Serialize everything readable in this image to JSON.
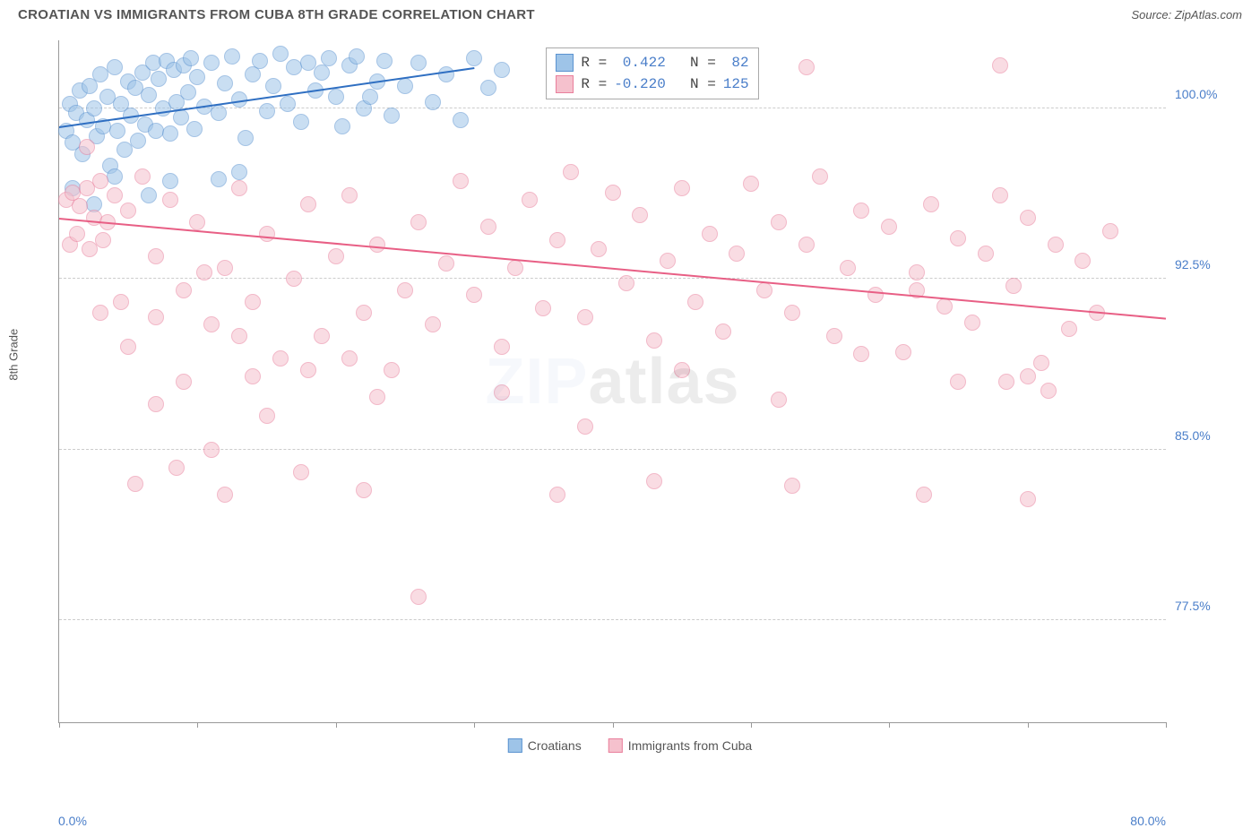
{
  "title": "CROATIAN VS IMMIGRANTS FROM CUBA 8TH GRADE CORRELATION CHART",
  "source": "Source: ZipAtlas.com",
  "yaxis_label": "8th Grade",
  "watermark_a": "ZIP",
  "watermark_b": "atlas",
  "chart": {
    "type": "scatter",
    "xlim": [
      0,
      80
    ],
    "ylim": [
      73,
      103
    ],
    "yticks": [
      77.5,
      85.0,
      92.5,
      100.0
    ],
    "ytick_labels": [
      "77.5%",
      "85.0%",
      "92.5%",
      "100.0%"
    ],
    "xticks": [
      0,
      10,
      20,
      30,
      40,
      50,
      60,
      70,
      80
    ],
    "xaxis_min_label": "0.0%",
    "xaxis_max_label": "80.0%",
    "background_color": "#ffffff",
    "grid_color": "#cccccc",
    "series": [
      {
        "name": "Croatians",
        "color_fill": "#9ec4e8",
        "color_stroke": "#5b93d0",
        "line_color": "#2f6fc2",
        "R": "0.422",
        "N": "82",
        "trend": {
          "x1": 0,
          "y1": 99.2,
          "x2": 30,
          "y2": 101.8
        },
        "points": [
          [
            0.5,
            99.0
          ],
          [
            0.8,
            100.2
          ],
          [
            1.0,
            98.5
          ],
          [
            1.2,
            99.8
          ],
          [
            1.5,
            100.8
          ],
          [
            1.7,
            98.0
          ],
          [
            2.0,
            99.5
          ],
          [
            2.2,
            101.0
          ],
          [
            2.5,
            100.0
          ],
          [
            2.7,
            98.8
          ],
          [
            3.0,
            101.5
          ],
          [
            3.2,
            99.2
          ],
          [
            3.5,
            100.5
          ],
          [
            3.7,
            97.5
          ],
          [
            4.0,
            101.8
          ],
          [
            4.2,
            99.0
          ],
          [
            4.5,
            100.2
          ],
          [
            4.7,
            98.2
          ],
          [
            5.0,
            101.2
          ],
          [
            5.2,
            99.7
          ],
          [
            5.5,
            100.9
          ],
          [
            5.7,
            98.6
          ],
          [
            6.0,
            101.6
          ],
          [
            6.2,
            99.3
          ],
          [
            6.5,
            100.6
          ],
          [
            6.8,
            102.0
          ],
          [
            7.0,
            99.0
          ],
          [
            7.2,
            101.3
          ],
          [
            7.5,
            100.0
          ],
          [
            7.8,
            102.1
          ],
          [
            8.0,
            98.9
          ],
          [
            8.3,
            101.7
          ],
          [
            8.5,
            100.3
          ],
          [
            8.8,
            99.6
          ],
          [
            9.0,
            101.9
          ],
          [
            9.3,
            100.7
          ],
          [
            9.5,
            102.2
          ],
          [
            9.8,
            99.1
          ],
          [
            10.0,
            101.4
          ],
          [
            10.5,
            100.1
          ],
          [
            11.0,
            102.0
          ],
          [
            11.5,
            99.8
          ],
          [
            12.0,
            101.1
          ],
          [
            12.5,
            102.3
          ],
          [
            13.0,
            100.4
          ],
          [
            13.5,
            98.7
          ],
          [
            14.0,
            101.5
          ],
          [
            14.5,
            102.1
          ],
          [
            15.0,
            99.9
          ],
          [
            15.5,
            101.0
          ],
          [
            16.0,
            102.4
          ],
          [
            16.5,
            100.2
          ],
          [
            17.0,
            101.8
          ],
          [
            17.5,
            99.4
          ],
          [
            18.0,
            102.0
          ],
          [
            18.5,
            100.8
          ],
          [
            19.0,
            101.6
          ],
          [
            19.5,
            102.2
          ],
          [
            20.0,
            100.5
          ],
          [
            20.5,
            99.2
          ],
          [
            21.0,
            101.9
          ],
          [
            21.5,
            102.3
          ],
          [
            22.0,
            100.0
          ],
          [
            22.5,
            100.5
          ],
          [
            23.0,
            101.2
          ],
          [
            23.5,
            102.1
          ],
          [
            24.0,
            99.7
          ],
          [
            25.0,
            101.0
          ],
          [
            26.0,
            102.0
          ],
          [
            27.0,
            100.3
          ],
          [
            28.0,
            101.5
          ],
          [
            29.0,
            99.5
          ],
          [
            30.0,
            102.2
          ],
          [
            31.0,
            100.9
          ],
          [
            32.0,
            101.7
          ],
          [
            11.5,
            96.9
          ],
          [
            13.0,
            97.2
          ],
          [
            1.0,
            96.5
          ],
          [
            2.5,
            95.8
          ],
          [
            4.0,
            97.0
          ],
          [
            6.5,
            96.2
          ],
          [
            8.0,
            96.8
          ]
        ]
      },
      {
        "name": "Immigrants from Cuba",
        "color_fill": "#f5c1cd",
        "color_stroke": "#e97f9c",
        "line_color": "#e85f85",
        "R": "-0.220",
        "N": "125",
        "trend": {
          "x1": 0,
          "y1": 95.2,
          "x2": 80,
          "y2": 90.8
        },
        "points": [
          [
            0.5,
            96.0
          ],
          [
            1.0,
            96.3
          ],
          [
            1.5,
            95.7
          ],
          [
            2.0,
            96.5
          ],
          [
            2.5,
            95.2
          ],
          [
            3.0,
            96.8
          ],
          [
            3.5,
            95.0
          ],
          [
            0.8,
            94.0
          ],
          [
            1.3,
            94.5
          ],
          [
            2.2,
            93.8
          ],
          [
            3.2,
            94.2
          ],
          [
            4.0,
            96.2
          ],
          [
            5.0,
            95.5
          ],
          [
            6.0,
            97.0
          ],
          [
            7.0,
            93.5
          ],
          [
            8.0,
            96.0
          ],
          [
            9.0,
            92.0
          ],
          [
            10.0,
            95.0
          ],
          [
            11.0,
            90.5
          ],
          [
            12.0,
            93.0
          ],
          [
            13.0,
            96.5
          ],
          [
            14.0,
            91.5
          ],
          [
            15.0,
            94.5
          ],
          [
            16.0,
            89.0
          ],
          [
            17.0,
            92.5
          ],
          [
            18.0,
            95.8
          ],
          [
            19.0,
            90.0
          ],
          [
            20.0,
            93.5
          ],
          [
            21.0,
            96.2
          ],
          [
            22.0,
            91.0
          ],
          [
            23.0,
            94.0
          ],
          [
            24.0,
            88.5
          ],
          [
            25.0,
            92.0
          ],
          [
            26.0,
            95.0
          ],
          [
            27.0,
            90.5
          ],
          [
            28.0,
            93.2
          ],
          [
            29.0,
            96.8
          ],
          [
            30.0,
            91.8
          ],
          [
            31.0,
            94.8
          ],
          [
            32.0,
            89.5
          ],
          [
            33.0,
            93.0
          ],
          [
            34.0,
            96.0
          ],
          [
            35.0,
            91.2
          ],
          [
            36.0,
            94.2
          ],
          [
            37.0,
            97.2
          ],
          [
            38.0,
            90.8
          ],
          [
            39.0,
            93.8
          ],
          [
            40.0,
            96.3
          ],
          [
            41.0,
            92.3
          ],
          [
            42.0,
            95.3
          ],
          [
            43.0,
            89.8
          ],
          [
            44.0,
            93.3
          ],
          [
            45.0,
            96.5
          ],
          [
            46.0,
            91.5
          ],
          [
            47.0,
            94.5
          ],
          [
            48.0,
            90.2
          ],
          [
            49.0,
            93.6
          ],
          [
            50.0,
            96.7
          ],
          [
            51.0,
            92.0
          ],
          [
            52.0,
            95.0
          ],
          [
            53.0,
            91.0
          ],
          [
            54.0,
            94.0
          ],
          [
            55.0,
            97.0
          ],
          [
            56.0,
            90.0
          ],
          [
            57.0,
            93.0
          ],
          [
            58.0,
            95.5
          ],
          [
            59.0,
            91.8
          ],
          [
            60.0,
            94.8
          ],
          [
            61.0,
            89.3
          ],
          [
            62.0,
            92.8
          ],
          [
            63.0,
            95.8
          ],
          [
            64.0,
            91.3
          ],
          [
            65.0,
            94.3
          ],
          [
            66.0,
            90.6
          ],
          [
            67.0,
            93.6
          ],
          [
            68.0,
            96.2
          ],
          [
            69.0,
            92.2
          ],
          [
            70.0,
            95.2
          ],
          [
            71.0,
            88.8
          ],
          [
            72.0,
            94.0
          ],
          [
            73.0,
            90.3
          ],
          [
            74.0,
            93.3
          ],
          [
            75.0,
            91.0
          ],
          [
            76.0,
            94.6
          ],
          [
            3.0,
            91.0
          ],
          [
            5.0,
            89.5
          ],
          [
            7.0,
            87.0
          ],
          [
            9.0,
            88.0
          ],
          [
            11.0,
            85.0
          ],
          [
            13.0,
            90.0
          ],
          [
            15.0,
            86.5
          ],
          [
            5.5,
            83.5
          ],
          [
            8.5,
            84.2
          ],
          [
            12.0,
            83.0
          ],
          [
            17.5,
            84.0
          ],
          [
            22.0,
            83.2
          ],
          [
            36.0,
            83.0
          ],
          [
            43.0,
            83.6
          ],
          [
            53.0,
            83.4
          ],
          [
            62.5,
            83.0
          ],
          [
            70.0,
            82.8
          ],
          [
            7.0,
            90.8
          ],
          [
            14.0,
            88.2
          ],
          [
            21.0,
            89.0
          ],
          [
            26.0,
            78.5
          ],
          [
            32.0,
            87.5
          ],
          [
            38.0,
            86.0
          ],
          [
            45.0,
            88.5
          ],
          [
            52.0,
            87.2
          ],
          [
            58.0,
            89.2
          ],
          [
            65.0,
            88.0
          ],
          [
            71.5,
            87.6
          ],
          [
            54.0,
            101.8
          ],
          [
            62.0,
            92.0
          ],
          [
            68.5,
            88.0
          ],
          [
            70.0,
            88.2
          ],
          [
            68.0,
            101.9
          ],
          [
            23.0,
            87.3
          ],
          [
            18.0,
            88.5
          ],
          [
            10.5,
            92.8
          ],
          [
            4.5,
            91.5
          ],
          [
            2.0,
            98.3
          ]
        ]
      }
    ]
  },
  "legend_box": {
    "left_pct": 44,
    "top_pct": 1
  },
  "r_label": "R =",
  "n_label": "N ="
}
